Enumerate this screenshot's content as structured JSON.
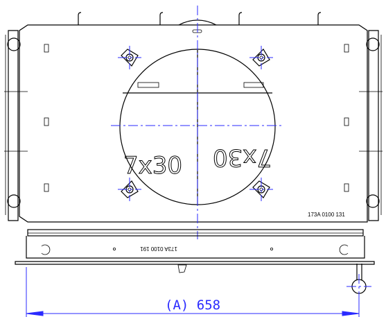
{
  "labels": {
    "part_number_right": "173A 0100 131",
    "part_number_center": "173A 0100 191",
    "stencil_left": "7x30",
    "stencil_right": "7x30"
  },
  "dimension": {
    "text": "(A) 658"
  }
}
